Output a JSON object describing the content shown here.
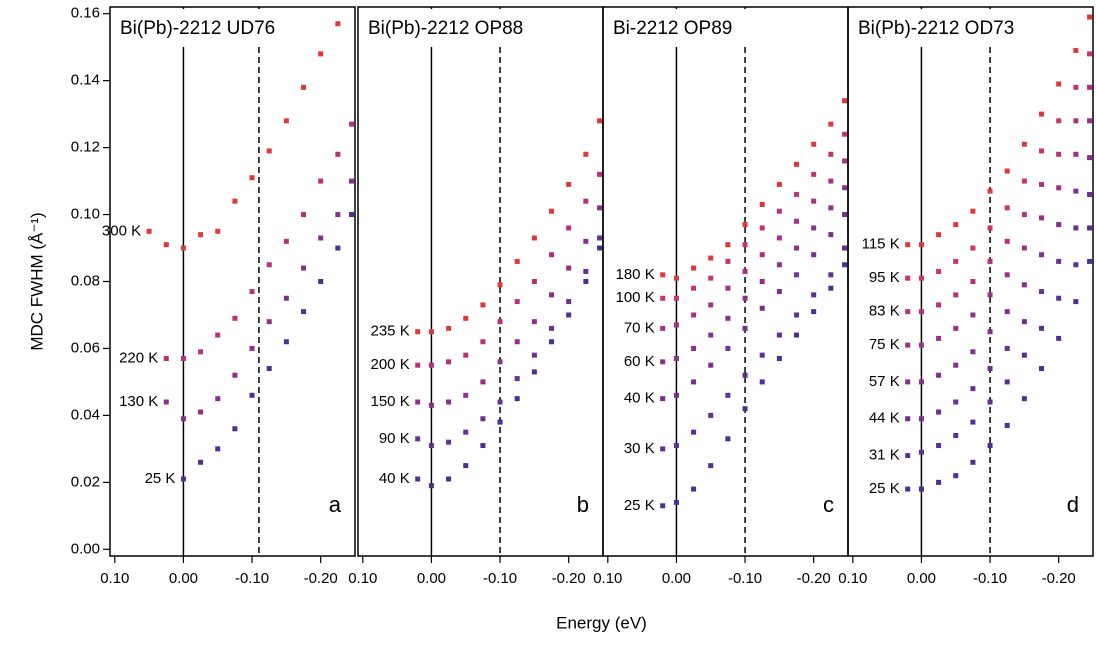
{
  "chart_data": [
    {
      "type": "scatter",
      "title": "Bi(Pb)-2212 UD76",
      "panel_label": "a",
      "ylabel": "MDC FWHM  (Å⁻¹)",
      "xlabel": "Energy  (eV)",
      "xlim": [
        0.107,
        -0.25
      ],
      "ylim": [
        -0.002,
        0.162
      ],
      "xticks": [
        {
          "value": 0.1,
          "label": "0.10"
        },
        {
          "value": 0,
          "label": "0.00"
        },
        {
          "value": -0.1,
          "label": "-0.10"
        },
        {
          "value": -0.2,
          "label": "-0.20"
        }
      ],
      "yticks": [
        {
          "value": 0,
          "label": "0.00"
        },
        {
          "value": 0.02,
          "label": "0.02"
        },
        {
          "value": 0.04,
          "label": "0.04"
        },
        {
          "value": 0.06,
          "label": "0.06"
        },
        {
          "value": 0.08,
          "label": "0.08"
        },
        {
          "value": 0.1,
          "label": "0.10"
        },
        {
          "value": 0.12,
          "label": "0.12"
        },
        {
          "value": 0.14,
          "label": "0.14"
        },
        {
          "value": 0.16,
          "label": "0.16"
        }
      ],
      "vlines": [
        {
          "value": 0,
          "style": "solid"
        },
        {
          "value": -0.11,
          "style": "dashed"
        }
      ],
      "x": [
        0.05,
        0.025,
        0.0,
        -0.025,
        -0.05,
        -0.075,
        -0.1,
        -0.125,
        -0.15,
        -0.175,
        -0.2,
        -0.225,
        -0.245
      ],
      "series": [
        {
          "name": "25 K",
          "color": "#4b2f93",
          "values": [
            null,
            null,
            0.021,
            0.026,
            0.03,
            0.036,
            0.046,
            0.054,
            0.062,
            0.071,
            0.08,
            0.09,
            0.1
          ]
        },
        {
          "name": "130 K",
          "color": "#8a2f8e",
          "values": [
            null,
            0.044,
            0.039,
            0.041,
            0.045,
            0.052,
            0.06,
            0.068,
            0.075,
            0.084,
            0.093,
            0.1,
            0.11
          ]
        },
        {
          "name": "220 K",
          "color": "#b8307a",
          "values": [
            null,
            0.057,
            0.057,
            0.059,
            0.064,
            0.069,
            0.077,
            0.085,
            0.092,
            0.1,
            0.11,
            0.118,
            0.127
          ]
        },
        {
          "name": "300 K",
          "color": "#e03838",
          "values": [
            0.095,
            0.091,
            0.09,
            0.094,
            0.095,
            0.104,
            0.111,
            0.119,
            0.128,
            0.138,
            0.148,
            0.157,
            null
          ]
        }
      ]
    },
    {
      "type": "scatter",
      "title": "Bi(Pb)-2212 OP88",
      "panel_label": "b",
      "xlim": [
        0.107,
        -0.25
      ],
      "ylim": [
        -0.002,
        0.162
      ],
      "xticks": [
        {
          "value": 0.1,
          "label": "0.10"
        },
        {
          "value": 0,
          "label": "0.00"
        },
        {
          "value": -0.1,
          "label": "-0.10"
        },
        {
          "value": -0.2,
          "label": "-0.20"
        }
      ],
      "vlines": [
        {
          "value": 0,
          "style": "solid"
        },
        {
          "value": -0.1,
          "style": "dashed"
        }
      ],
      "x": [
        0.02,
        0.0,
        -0.025,
        -0.05,
        -0.075,
        -0.1,
        -0.125,
        -0.15,
        -0.175,
        -0.2,
        -0.225,
        -0.245
      ],
      "series": [
        {
          "name": "40 K",
          "color": "#4b2f93",
          "values": [
            0.021,
            0.019,
            0.021,
            0.025,
            0.031,
            0.038,
            0.045,
            0.053,
            0.062,
            0.07,
            0.08,
            0.09
          ]
        },
        {
          "name": "90 K",
          "color": "#6a2f92",
          "values": [
            0.033,
            0.031,
            0.032,
            0.035,
            0.039,
            0.044,
            0.051,
            0.058,
            0.066,
            0.074,
            0.083,
            0.093
          ]
        },
        {
          "name": "150 K",
          "color": "#8f2f8c",
          "values": [
            0.044,
            0.043,
            0.044,
            0.046,
            0.05,
            0.056,
            0.062,
            0.068,
            0.076,
            0.084,
            0.092,
            0.102
          ]
        },
        {
          "name": "200 K",
          "color": "#b8307a",
          "values": [
            0.055,
            0.055,
            0.056,
            0.058,
            0.062,
            0.068,
            0.074,
            0.08,
            0.088,
            0.096,
            0.104,
            0.112
          ]
        },
        {
          "name": "235 K",
          "color": "#e03838",
          "values": [
            0.065,
            0.065,
            0.066,
            0.069,
            0.073,
            0.079,
            0.086,
            0.093,
            0.101,
            0.109,
            0.118,
            0.128
          ]
        }
      ]
    },
    {
      "type": "scatter",
      "title": "Bi-2212 OP89",
      "panel_label": "c",
      "xlim": [
        0.107,
        -0.25
      ],
      "ylim": [
        -0.002,
        0.162
      ],
      "xticks": [
        {
          "value": 0.1,
          "label": "0.10"
        },
        {
          "value": 0,
          "label": "0.00"
        },
        {
          "value": -0.1,
          "label": "-0.10"
        },
        {
          "value": -0.2,
          "label": "-0.20"
        }
      ],
      "vlines": [
        {
          "value": 0,
          "style": "solid"
        },
        {
          "value": -0.1,
          "style": "dashed"
        }
      ],
      "x": [
        0.02,
        0.0,
        -0.025,
        -0.05,
        -0.075,
        -0.1,
        -0.125,
        -0.15,
        -0.175,
        -0.2,
        -0.225,
        -0.245
      ],
      "series": [
        {
          "name": "25 K",
          "color": "#4b2f93",
          "values": [
            0.013,
            0.014,
            0.018,
            0.025,
            0.033,
            0.042,
            0.05,
            0.057,
            0.064,
            0.071,
            0.078,
            0.085
          ]
        },
        {
          "name": "30 K",
          "color": "#5e2f93",
          "values": [
            0.03,
            0.031,
            0.035,
            0.04,
            0.046,
            0.052,
            0.058,
            0.064,
            0.07,
            0.076,
            0.082,
            0.09
          ]
        },
        {
          "name": "40 K",
          "color": "#762f91",
          "values": [
            0.045,
            0.046,
            0.05,
            0.055,
            0.06,
            0.066,
            0.072,
            0.077,
            0.082,
            0.088,
            0.094,
            0.1
          ]
        },
        {
          "name": "60 K",
          "color": "#8f2f8c",
          "values": [
            0.056,
            0.057,
            0.06,
            0.064,
            0.069,
            0.075,
            0.08,
            0.085,
            0.09,
            0.096,
            0.102,
            0.108
          ]
        },
        {
          "name": "70 K",
          "color": "#a82f82",
          "values": [
            0.066,
            0.067,
            0.07,
            0.073,
            0.078,
            0.083,
            0.088,
            0.093,
            0.098,
            0.104,
            0.11,
            0.116
          ]
        },
        {
          "name": "100 K",
          "color": "#c43270",
          "values": [
            0.075,
            0.075,
            0.078,
            0.081,
            0.086,
            0.091,
            0.096,
            0.101,
            0.106,
            0.112,
            0.118,
            0.124
          ]
        },
        {
          "name": "180 K",
          "color": "#e03838",
          "values": [
            0.082,
            0.081,
            0.084,
            0.087,
            0.091,
            0.097,
            0.103,
            0.109,
            0.115,
            0.121,
            0.127,
            0.134
          ]
        }
      ]
    },
    {
      "type": "scatter",
      "title": "Bi(Pb)-2212 OD73",
      "panel_label": "d",
      "xlim": [
        0.107,
        -0.25
      ],
      "ylim": [
        -0.002,
        0.162
      ],
      "xticks": [
        {
          "value": 0.1,
          "label": "0.10"
        },
        {
          "value": 0,
          "label": "0.00"
        },
        {
          "value": -0.1,
          "label": "-0.10"
        },
        {
          "value": -0.2,
          "label": "-0.20"
        }
      ],
      "vlines": [
        {
          "value": 0,
          "style": "solid"
        },
        {
          "value": -0.1,
          "style": "dashed"
        }
      ],
      "x": [
        0.02,
        0.0,
        -0.025,
        -0.05,
        -0.075,
        -0.1,
        -0.125,
        -0.15,
        -0.175,
        -0.2,
        -0.225,
        -0.245
      ],
      "series": [
        {
          "name": "25 K",
          "color": "#4b2f93",
          "values": [
            0.018,
            0.018,
            0.02,
            0.022,
            0.026,
            0.031,
            0.037,
            0.045,
            0.054,
            0.063,
            0.074,
            0.086
          ]
        },
        {
          "name": "31 K",
          "color": "#5a2f93",
          "values": [
            0.028,
            0.029,
            0.031,
            0.034,
            0.038,
            0.044,
            0.05,
            0.058,
            0.066,
            0.075,
            0.085,
            0.096
          ]
        },
        {
          "name": "44 K",
          "color": "#6e2f92",
          "values": [
            0.039,
            0.039,
            0.041,
            0.044,
            0.048,
            0.054,
            0.06,
            0.068,
            0.077,
            0.086,
            0.096,
            0.106
          ]
        },
        {
          "name": "57 K",
          "color": "#842f8f",
          "values": [
            0.05,
            0.05,
            0.052,
            0.055,
            0.059,
            0.065,
            0.071,
            0.079,
            0.088,
            0.097,
            0.107,
            0.117
          ]
        },
        {
          "name": "75 K",
          "color": "#9c2f88",
          "values": [
            0.061,
            0.061,
            0.063,
            0.066,
            0.07,
            0.076,
            0.082,
            0.09,
            0.099,
            0.108,
            0.118,
            0.128
          ]
        },
        {
          "name": "83 K",
          "color": "#b4307c",
          "values": [
            0.071,
            0.071,
            0.073,
            0.076,
            0.08,
            0.086,
            0.092,
            0.1,
            0.109,
            0.118,
            0.128,
            0.138
          ]
        },
        {
          "name": "95 K",
          "color": "#ca336a",
          "values": [
            0.081,
            0.081,
            0.083,
            0.086,
            0.09,
            0.096,
            0.102,
            0.11,
            0.119,
            0.128,
            0.138,
            0.148
          ]
        },
        {
          "name": "115 K",
          "color": "#e03838",
          "values": [
            0.091,
            0.091,
            0.094,
            0.097,
            0.101,
            0.107,
            0.113,
            0.121,
            0.13,
            0.139,
            0.149,
            0.159
          ]
        }
      ]
    }
  ]
}
